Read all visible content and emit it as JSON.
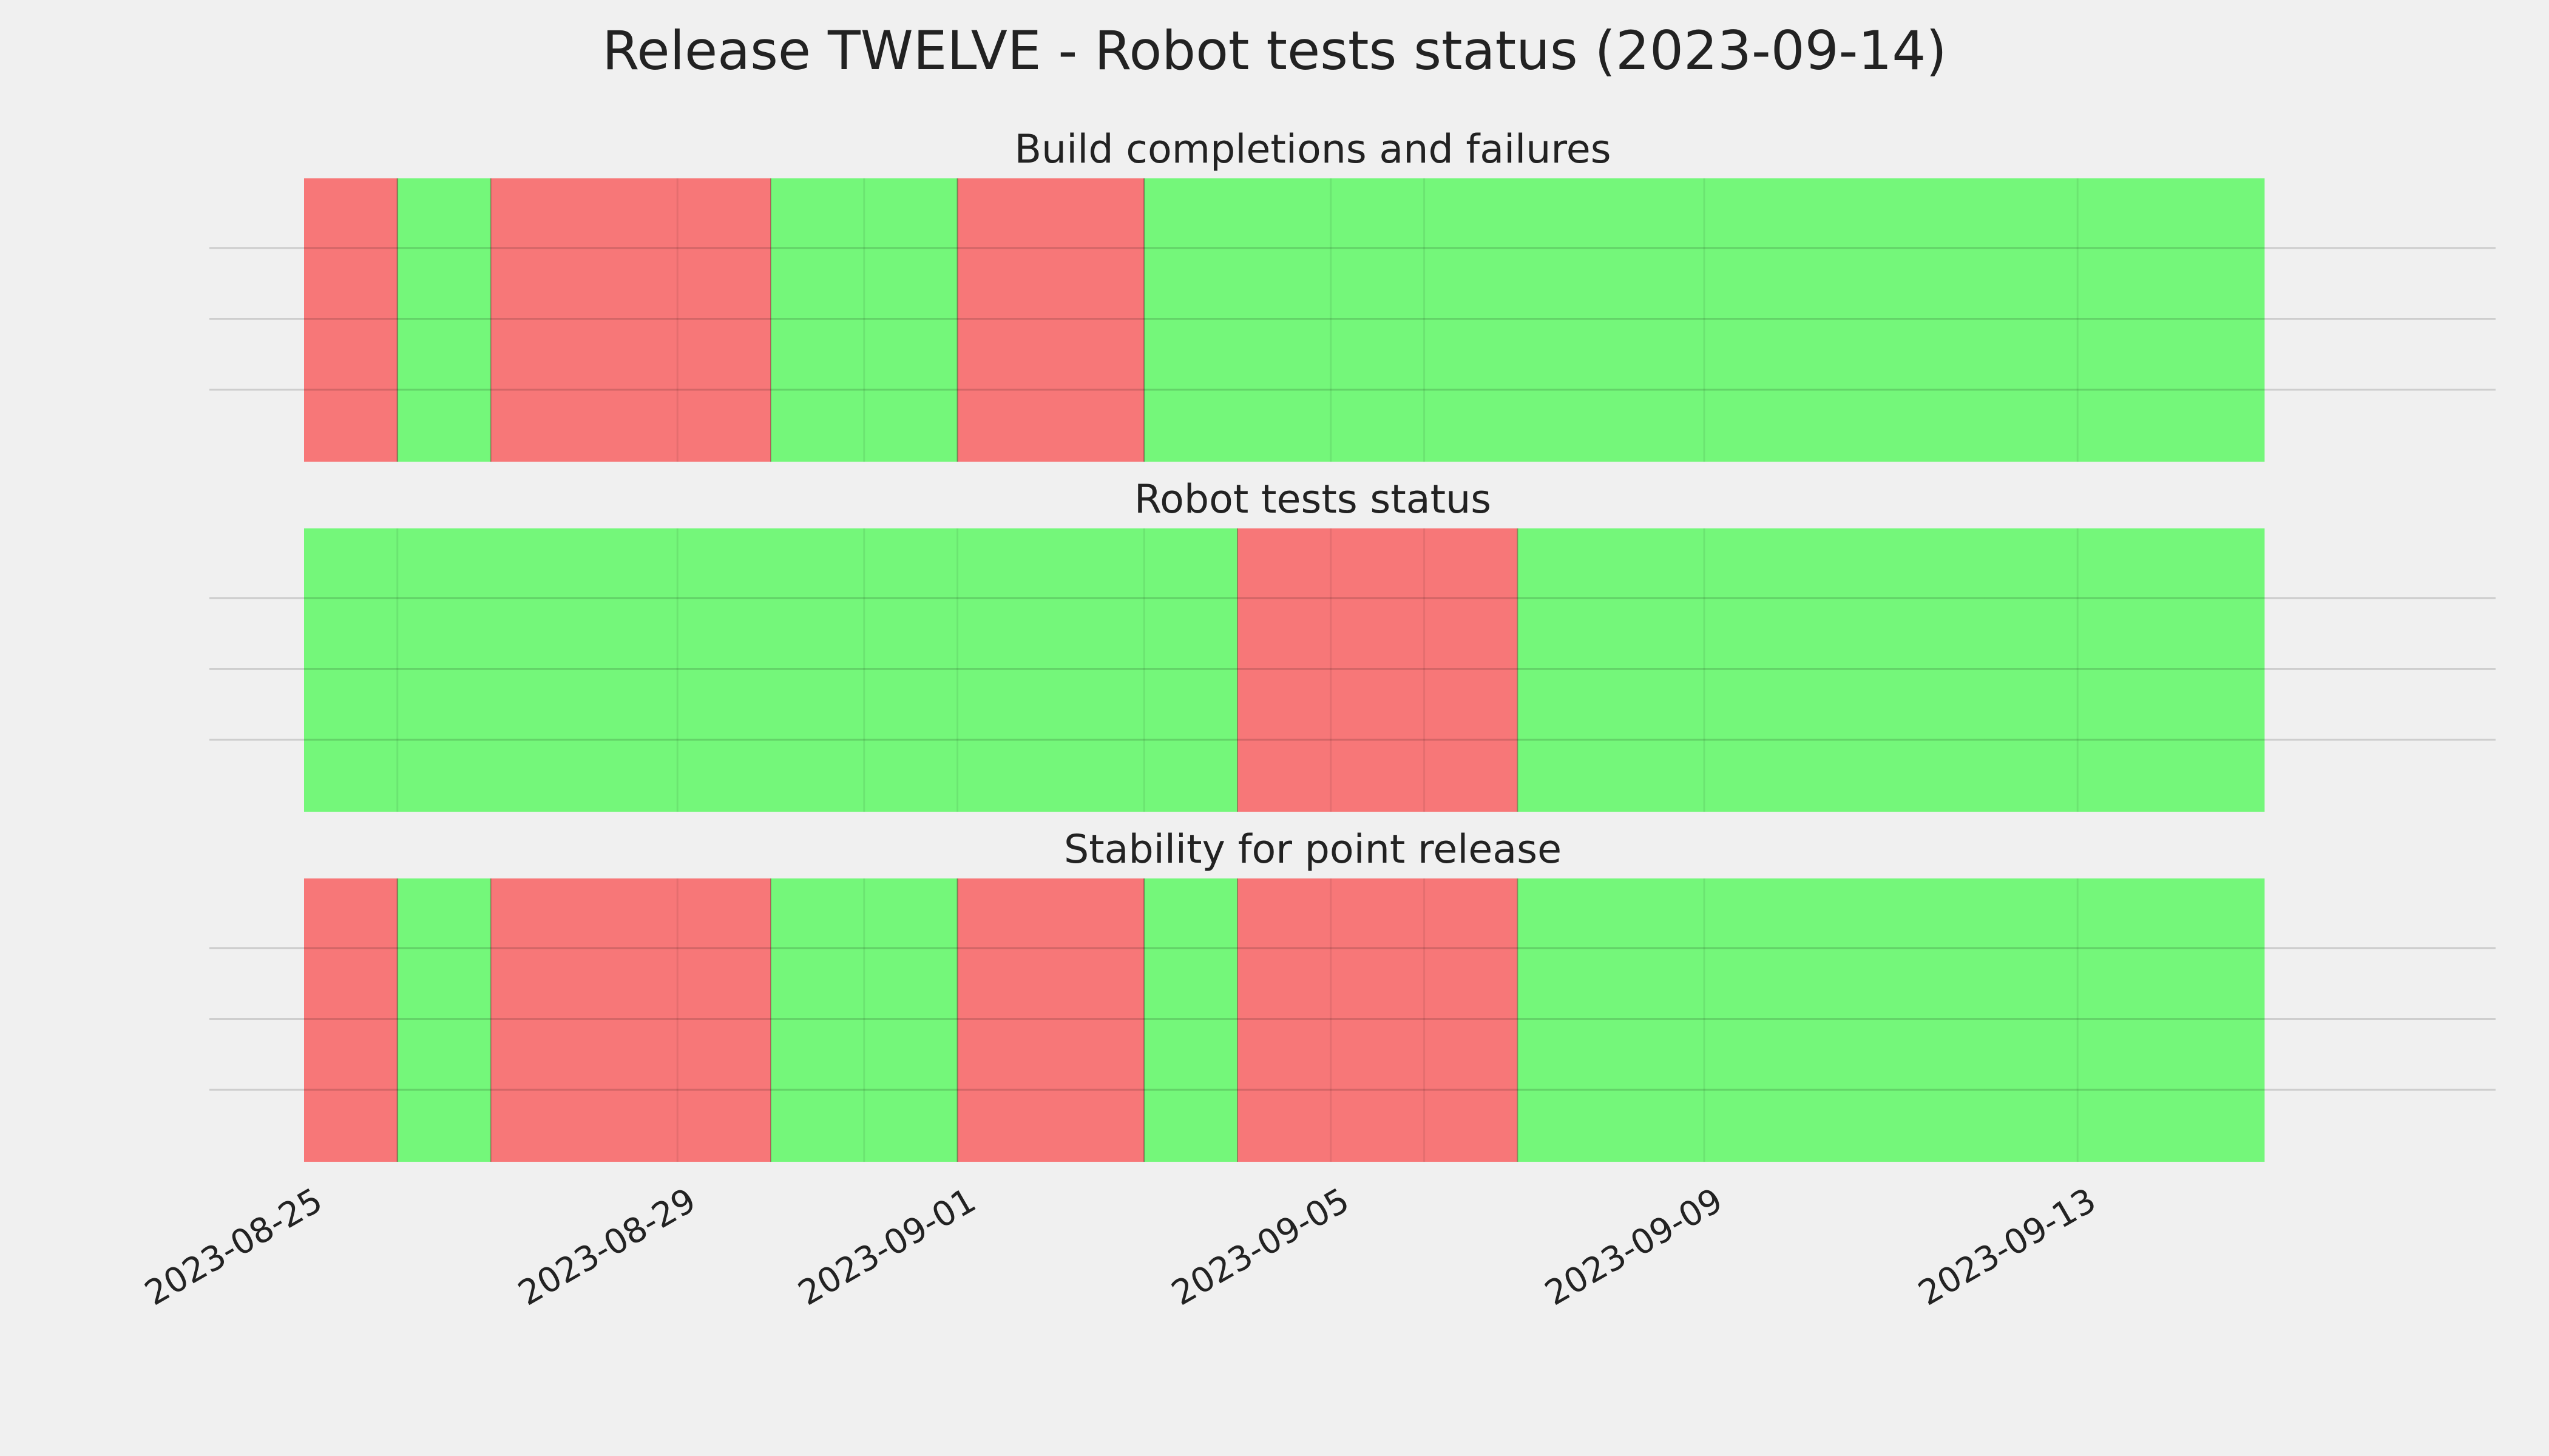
{
  "chart_data": {
    "type": "timeline",
    "title": "Release TWELVE - Robot tests status (2023-09-14)",
    "x_range": [
      "2023-08-25",
      "2023-09-15"
    ],
    "x_ticks": [
      "2023-08-25",
      "2023-08-29",
      "2023-09-01",
      "2023-09-05",
      "2023-09-09",
      "2023-09-13"
    ],
    "day_gridlines": [
      "2023-08-26",
      "2023-08-29",
      "2023-08-31",
      "2023-09-01",
      "2023-09-03",
      "2023-09-05",
      "2023-09-06",
      "2023-09-09",
      "2023-09-13"
    ],
    "colors": {
      "pass": "#74f77a",
      "fail": "#f77778",
      "background": "#f0f0f0"
    },
    "grid": true,
    "panels": [
      {
        "title": "Build completions and failures",
        "days": [
          {
            "date": "2023-08-25",
            "status": "fail"
          },
          {
            "date": "2023-08-26",
            "status": "pass"
          },
          {
            "date": "2023-08-27",
            "status": "fail"
          },
          {
            "date": "2023-08-28",
            "status": "fail"
          },
          {
            "date": "2023-08-29",
            "status": "fail"
          },
          {
            "date": "2023-08-30",
            "status": "pass"
          },
          {
            "date": "2023-08-31",
            "status": "pass"
          },
          {
            "date": "2023-09-01",
            "status": "fail"
          },
          {
            "date": "2023-09-02",
            "status": "fail"
          },
          {
            "date": "2023-09-03",
            "status": "pass"
          },
          {
            "date": "2023-09-04",
            "status": "pass"
          },
          {
            "date": "2023-09-05",
            "status": "pass"
          },
          {
            "date": "2023-09-06",
            "status": "pass"
          },
          {
            "date": "2023-09-07",
            "status": "pass"
          },
          {
            "date": "2023-09-08",
            "status": "pass"
          },
          {
            "date": "2023-09-09",
            "status": "pass"
          },
          {
            "date": "2023-09-10",
            "status": "pass"
          },
          {
            "date": "2023-09-11",
            "status": "pass"
          },
          {
            "date": "2023-09-12",
            "status": "pass"
          },
          {
            "date": "2023-09-13",
            "status": "pass"
          },
          {
            "date": "2023-09-14",
            "status": "pass"
          }
        ]
      },
      {
        "title": "Robot tests status",
        "days": [
          {
            "date": "2023-08-25",
            "status": "pass"
          },
          {
            "date": "2023-08-26",
            "status": "pass"
          },
          {
            "date": "2023-08-27",
            "status": "pass"
          },
          {
            "date": "2023-08-28",
            "status": "pass"
          },
          {
            "date": "2023-08-29",
            "status": "pass"
          },
          {
            "date": "2023-08-30",
            "status": "pass"
          },
          {
            "date": "2023-08-31",
            "status": "pass"
          },
          {
            "date": "2023-09-01",
            "status": "pass"
          },
          {
            "date": "2023-09-02",
            "status": "pass"
          },
          {
            "date": "2023-09-03",
            "status": "pass"
          },
          {
            "date": "2023-09-04",
            "status": "fail"
          },
          {
            "date": "2023-09-05",
            "status": "fail"
          },
          {
            "date": "2023-09-06",
            "status": "fail"
          },
          {
            "date": "2023-09-07",
            "status": "pass"
          },
          {
            "date": "2023-09-08",
            "status": "pass"
          },
          {
            "date": "2023-09-09",
            "status": "pass"
          },
          {
            "date": "2023-09-10",
            "status": "pass"
          },
          {
            "date": "2023-09-11",
            "status": "pass"
          },
          {
            "date": "2023-09-12",
            "status": "pass"
          },
          {
            "date": "2023-09-13",
            "status": "pass"
          },
          {
            "date": "2023-09-14",
            "status": "pass"
          }
        ]
      },
      {
        "title": "Stability for point release",
        "days": [
          {
            "date": "2023-08-25",
            "status": "fail"
          },
          {
            "date": "2023-08-26",
            "status": "pass"
          },
          {
            "date": "2023-08-27",
            "status": "fail"
          },
          {
            "date": "2023-08-28",
            "status": "fail"
          },
          {
            "date": "2023-08-29",
            "status": "fail"
          },
          {
            "date": "2023-08-30",
            "status": "pass"
          },
          {
            "date": "2023-08-31",
            "status": "pass"
          },
          {
            "date": "2023-09-01",
            "status": "fail"
          },
          {
            "date": "2023-09-02",
            "status": "fail"
          },
          {
            "date": "2023-09-03",
            "status": "pass"
          },
          {
            "date": "2023-09-04",
            "status": "fail"
          },
          {
            "date": "2023-09-05",
            "status": "fail"
          },
          {
            "date": "2023-09-06",
            "status": "fail"
          },
          {
            "date": "2023-09-07",
            "status": "pass"
          },
          {
            "date": "2023-09-08",
            "status": "pass"
          },
          {
            "date": "2023-09-09",
            "status": "pass"
          },
          {
            "date": "2023-09-10",
            "status": "pass"
          },
          {
            "date": "2023-09-11",
            "status": "pass"
          },
          {
            "date": "2023-09-12",
            "status": "pass"
          },
          {
            "date": "2023-09-13",
            "status": "pass"
          },
          {
            "date": "2023-09-14",
            "status": "pass"
          }
        ]
      }
    ]
  }
}
